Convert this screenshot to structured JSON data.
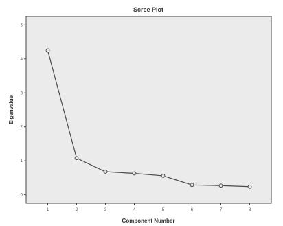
{
  "chart_data": {
    "type": "line",
    "title": "Scree Plot",
    "xlabel": "Component Number",
    "ylabel": "Eigenvalue",
    "x": [
      1,
      2,
      3,
      4,
      5,
      6,
      7,
      8
    ],
    "y": [
      4.25,
      1.08,
      0.68,
      0.63,
      0.56,
      0.29,
      0.27,
      0.24
    ],
    "xticks": [
      "1",
      "2",
      "3",
      "4",
      "5",
      "6",
      "7",
      "8"
    ],
    "yticks": [
      "0",
      "1",
      "2",
      "3",
      "4",
      "5"
    ],
    "xlim": [
      0.25,
      8.75
    ],
    "ylim": [
      -0.25,
      5.25
    ],
    "grid": false,
    "marker": "open-circle",
    "colors": {
      "plot_background": "#ebebeb",
      "line": "#4a4a4a",
      "frame": "#444444"
    }
  }
}
